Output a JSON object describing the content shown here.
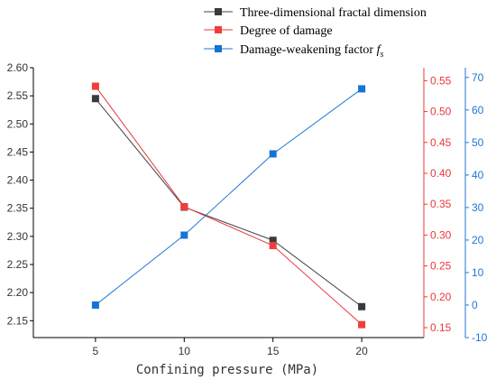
{
  "chart_data": {
    "type": "line",
    "title": "",
    "xlabel": "Confining pressure (MPa)",
    "x": [
      5,
      10,
      15,
      20
    ],
    "xlim": [
      1.5,
      23.5
    ],
    "x_ticks": [
      "5",
      "10",
      "15",
      "20"
    ],
    "grid": false,
    "legend_position": "top-right",
    "axes": {
      "left": {
        "ylim": [
          2.12,
          2.6
        ],
        "ticks": [
          "2.15",
          "2.20",
          "2.25",
          "2.30",
          "2.35",
          "2.40",
          "2.45",
          "2.50",
          "2.55",
          "2.60"
        ],
        "color": "#000000"
      },
      "right1": {
        "ylim": [
          0.134,
          0.571
        ],
        "ticks": [
          "0.15",
          "0.20",
          "0.25",
          "0.30",
          "0.35",
          "0.40",
          "0.45",
          "0.50",
          "0.55"
        ],
        "color": "#e8383d"
      },
      "right2": {
        "ylim": [
          -10,
          73
        ],
        "ticks": [
          "-10",
          "0",
          "10",
          "20",
          "30",
          "40",
          "50",
          "60",
          "70"
        ],
        "color": "#1f77d4"
      }
    },
    "series": [
      {
        "name": "Three-dimensional fractal dimension",
        "axis": "left",
        "color": "#444444",
        "marker_color": "#3a3a3a",
        "values": [
          2.545,
          2.352,
          2.293,
          2.175
        ]
      },
      {
        "name": "Degree of damage",
        "axis": "right1",
        "color": "#e8383d",
        "marker_color": "#f03c3c",
        "values": [
          0.541,
          0.346,
          0.283,
          0.155
        ]
      },
      {
        "name": "Damage-weakening factor",
        "name_subscript": "s",
        "name_symbol": "f",
        "axis": "right2",
        "color": "#1f77d4",
        "marker_color": "#1673d6",
        "values": [
          0,
          21.5,
          46.5,
          66.5
        ]
      }
    ]
  }
}
